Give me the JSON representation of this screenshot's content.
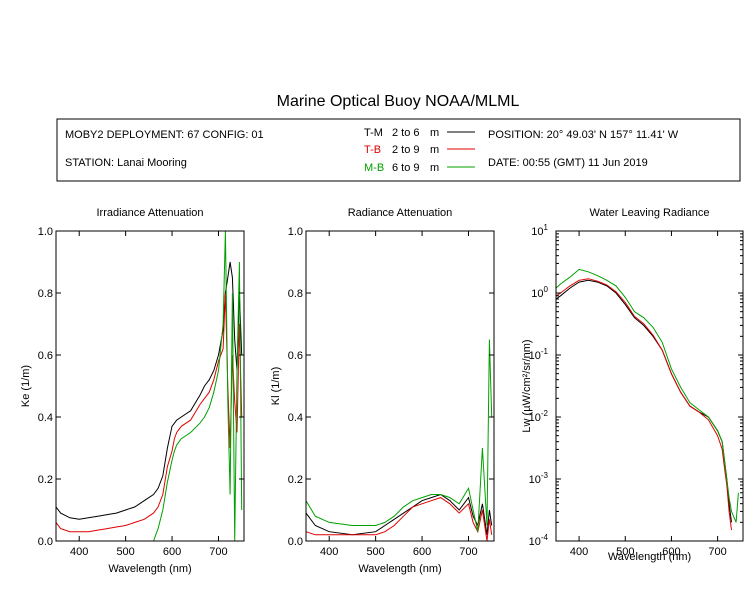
{
  "title": "Marine Optical Buoy NOAA/MLML",
  "info": {
    "deployment": "MOBY2 DEPLOYMENT: 67 CONFIG: 01",
    "station": "STATION: Lanai Mooring",
    "legend": [
      {
        "label": "T-M",
        "range": "2 to 6",
        "unit": "m",
        "color": "#000000"
      },
      {
        "label": "T-B",
        "range": "2 to 9",
        "unit": "m",
        "color": "#e00000"
      },
      {
        "label": "M-B",
        "range": "6 to 9",
        "unit": "m",
        "color": "#00a000"
      }
    ],
    "position": "POSITION: 20° 49.03' N   157° 11.41' W",
    "date": "DATE: 00:55 (GMT) 11 Jun 2019"
  },
  "chart_data": [
    {
      "type": "line",
      "title": "Irradiance Attenuation",
      "xlabel": "Wavelength (nm)",
      "ylabel": "Ke  (1/m)",
      "xlim": [
        350,
        755
      ],
      "ylim": [
        0,
        1.0
      ],
      "xticks": [
        400,
        500,
        600,
        700
      ],
      "yticks": [
        "0.0",
        "0.2",
        "0.4",
        "0.6",
        "0.8",
        "1.0"
      ],
      "yscale": "linear",
      "series": [
        {
          "name": "T-M",
          "color": "#000000",
          "x": [
            350,
            360,
            380,
            400,
            420,
            440,
            460,
            480,
            500,
            520,
            540,
            560,
            570,
            580,
            590,
            600,
            605,
            610,
            620,
            640,
            660,
            670,
            680,
            690,
            700,
            710,
            715,
            720,
            725,
            730,
            735,
            740,
            745,
            750
          ],
          "y": [
            0.11,
            0.09,
            0.075,
            0.07,
            0.075,
            0.08,
            0.085,
            0.09,
            0.1,
            0.11,
            0.13,
            0.15,
            0.17,
            0.21,
            0.3,
            0.37,
            0.38,
            0.39,
            0.4,
            0.42,
            0.47,
            0.5,
            0.52,
            0.55,
            0.6,
            0.68,
            0.8,
            0.85,
            0.9,
            0.85,
            0.65,
            0.55,
            0.8,
            0.6
          ]
        },
        {
          "name": "T-B",
          "color": "#e00000",
          "x": [
            350,
            360,
            380,
            400,
            420,
            440,
            460,
            480,
            500,
            520,
            540,
            560,
            570,
            580,
            590,
            600,
            605,
            610,
            620,
            640,
            660,
            670,
            680,
            690,
            700,
            710,
            715,
            720,
            725,
            730,
            735,
            740,
            745,
            750
          ],
          "y": [
            0.06,
            0.04,
            0.03,
            0.03,
            0.03,
            0.035,
            0.04,
            0.045,
            0.05,
            0.06,
            0.07,
            0.09,
            0.11,
            0.15,
            0.24,
            0.29,
            0.33,
            0.35,
            0.37,
            0.39,
            0.44,
            0.46,
            0.48,
            0.52,
            0.58,
            0.62,
            0.8,
            0.5,
            0.3,
            0.6,
            0.45,
            0.35,
            0.7,
            0.4
          ]
        },
        {
          "name": "M-B",
          "color": "#00a000",
          "x": [
            350,
            360,
            380,
            400,
            420,
            440,
            460,
            480,
            500,
            520,
            540,
            560,
            570,
            580,
            590,
            600,
            605,
            610,
            620,
            640,
            660,
            670,
            680,
            690,
            700,
            710,
            715,
            720,
            725,
            730,
            735,
            740,
            745,
            750
          ],
          "y": [
            0.0,
            0.0,
            0.0,
            0.0,
            0.0,
            0.0,
            0.0,
            0.0,
            0.0,
            0.0,
            0.0,
            0.0,
            0.04,
            0.1,
            0.19,
            0.26,
            0.29,
            0.31,
            0.33,
            0.35,
            0.38,
            0.4,
            0.43,
            0.48,
            0.55,
            0.7,
            1.0,
            0.45,
            0.15,
            0.8,
            0.0,
            0.55,
            0.9,
            0.1
          ]
        }
      ]
    },
    {
      "type": "line",
      "title": "Radiance Attenuation",
      "xlabel": "Wavelength (nm)",
      "ylabel": "Kl  (1/m)",
      "xlim": [
        350,
        755
      ],
      "ylim": [
        0,
        1.0
      ],
      "xticks": [
        400,
        500,
        600,
        700
      ],
      "yticks": [
        "0.0",
        "0.2",
        "0.4",
        "0.6",
        "0.8",
        "1.0"
      ],
      "yscale": "linear",
      "series": [
        {
          "name": "T-M",
          "color": "#000000",
          "x": [
            350,
            370,
            400,
            450,
            500,
            520,
            540,
            560,
            580,
            600,
            620,
            640,
            660,
            680,
            700,
            710,
            720,
            730,
            740,
            745,
            750
          ],
          "y": [
            0.09,
            0.05,
            0.03,
            0.02,
            0.03,
            0.05,
            0.07,
            0.09,
            0.11,
            0.13,
            0.14,
            0.15,
            0.13,
            0.1,
            0.14,
            0.08,
            0.05,
            0.12,
            0.02,
            0.1,
            0.05
          ]
        },
        {
          "name": "T-B",
          "color": "#e00000",
          "x": [
            350,
            370,
            400,
            450,
            500,
            520,
            540,
            560,
            580,
            600,
            620,
            640,
            660,
            680,
            700,
            710,
            720,
            730,
            740,
            745,
            750
          ],
          "y": [
            0.03,
            0.02,
            0.02,
            0.02,
            0.02,
            0.03,
            0.05,
            0.08,
            0.11,
            0.12,
            0.13,
            0.14,
            0.12,
            0.09,
            0.12,
            0.06,
            0.03,
            0.1,
            0.0,
            0.07,
            0.02
          ]
        },
        {
          "name": "M-B",
          "color": "#00a000",
          "x": [
            350,
            370,
            400,
            450,
            500,
            520,
            540,
            560,
            580,
            600,
            620,
            640,
            660,
            680,
            700,
            710,
            720,
            730,
            740,
            745,
            750
          ],
          "y": [
            0.13,
            0.08,
            0.06,
            0.05,
            0.05,
            0.06,
            0.08,
            0.11,
            0.13,
            0.14,
            0.15,
            0.15,
            0.14,
            0.12,
            0.17,
            0.1,
            0.03,
            0.3,
            0.05,
            0.65,
            0.4
          ]
        }
      ]
    },
    {
      "type": "line",
      "title": "Water Leaving Radiance",
      "xlabel": "Wavelength (nm)",
      "ylabel": "Lw  (µW/cm²/sr/nm)",
      "xlim": [
        350,
        755
      ],
      "ylim": [
        0.0001,
        10
      ],
      "xticks": [
        400,
        500,
        600,
        700
      ],
      "yscale": "log",
      "yticks": [
        {
          "value": 10,
          "base": "10",
          "exp": "1"
        },
        {
          "value": 1,
          "base": "10",
          "exp": "0"
        },
        {
          "value": 0.1,
          "base": "10",
          "exp": "-1"
        },
        {
          "value": 0.01,
          "base": "10",
          "exp": "-2"
        },
        {
          "value": 0.001,
          "base": "10",
          "exp": "-3"
        },
        {
          "value": 0.0001,
          "base": "10",
          "exp": "-4"
        }
      ],
      "series": [
        {
          "name": "T-M",
          "color": "#000000",
          "x": [
            350,
            360,
            380,
            400,
            420,
            440,
            460,
            480,
            500,
            520,
            540,
            560,
            580,
            600,
            620,
            640,
            660,
            680,
            700,
            710,
            715,
            720,
            725,
            730
          ],
          "y": [
            0.8,
            0.9,
            1.2,
            1.5,
            1.6,
            1.5,
            1.3,
            1.0,
            0.65,
            0.4,
            0.3,
            0.2,
            0.12,
            0.05,
            0.025,
            0.015,
            0.012,
            0.01,
            0.006,
            0.004,
            0.002,
            0.001,
            0.0004,
            0.0002
          ]
        },
        {
          "name": "T-B",
          "color": "#e00000",
          "x": [
            350,
            360,
            380,
            400,
            420,
            440,
            460,
            480,
            500,
            520,
            540,
            560,
            580,
            600,
            620,
            640,
            660,
            680,
            700,
            710,
            715,
            720,
            725,
            730
          ],
          "y": [
            0.9,
            1.0,
            1.3,
            1.6,
            1.7,
            1.55,
            1.35,
            1.05,
            0.7,
            0.42,
            0.32,
            0.21,
            0.12,
            0.05,
            0.025,
            0.015,
            0.012,
            0.009,
            0.005,
            0.003,
            0.0015,
            0.0008,
            0.0003,
            0.00015
          ]
        },
        {
          "name": "M-B",
          "color": "#00a000",
          "x": [
            350,
            360,
            380,
            400,
            420,
            440,
            460,
            480,
            500,
            520,
            540,
            560,
            580,
            600,
            620,
            640,
            660,
            680,
            700,
            710,
            715,
            720,
            725,
            730,
            740,
            745
          ],
          "y": [
            1.2,
            1.4,
            1.8,
            2.4,
            2.2,
            1.9,
            1.6,
            1.3,
            0.85,
            0.5,
            0.4,
            0.28,
            0.16,
            0.06,
            0.03,
            0.017,
            0.013,
            0.01,
            0.006,
            0.004,
            0.002,
            0.001,
            0.0005,
            0.0003,
            0.0002,
            0.0006
          ]
        }
      ]
    }
  ]
}
